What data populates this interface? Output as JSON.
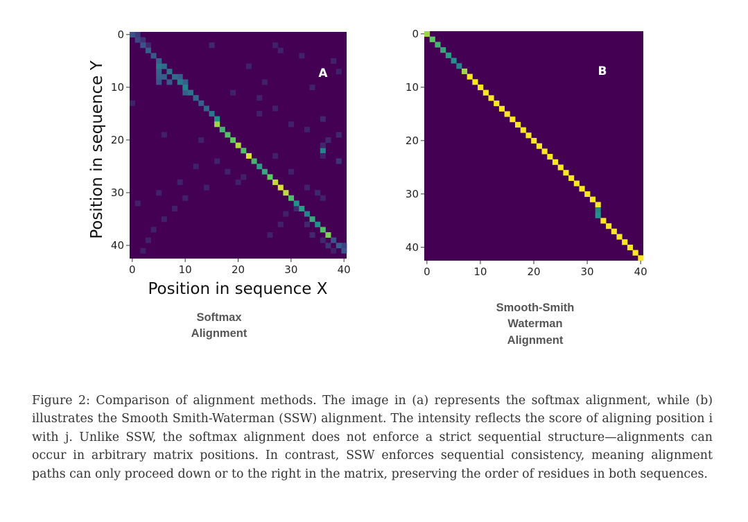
{
  "figure": {
    "caption": "Figure 2: Comparison of alignment methods. The image in (a) represents the softmax alignment, while (b) illustrates the Smooth Smith-Waterman (SSW) alignment. The intensity reflects the score of aligning position i with j. Unlike SSW, the softmax alignment does not enforce a strict sequential structure—alignments can occur in arbitrary matrix positions. In contrast, SSW enforces sequential consistency, meaning alignment paths can only proceed down or to the right in the matrix, preserving the order of residues in both sequences."
  },
  "chart_data": [
    {
      "type": "heatmap",
      "panel_label": "A",
      "subcaption": [
        "Softmax",
        "Alignment"
      ],
      "xlabel": "Position in sequence X",
      "ylabel": "Position in sequence Y",
      "x_ticks": [
        "0",
        "10",
        "20",
        "30",
        "40"
      ],
      "y_ticks": [
        "0",
        "10",
        "20",
        "30",
        "40"
      ],
      "xlim": [
        0,
        40
      ],
      "ylim": [
        0,
        42
      ],
      "rows": 43,
      "cols": 41,
      "colormap": "viridis",
      "background_value": 0.0,
      "diagonal": [
        [
          0,
          0,
          0.25
        ],
        [
          1,
          1,
          0.22
        ],
        [
          2,
          2,
          0.25
        ],
        [
          3,
          3,
          0.3
        ],
        [
          4,
          4,
          0.28
        ],
        [
          5,
          5,
          0.3
        ],
        [
          6,
          6,
          0.35
        ],
        [
          7,
          7,
          0.38
        ],
        [
          8,
          8,
          0.35
        ],
        [
          9,
          9,
          0.4
        ],
        [
          10,
          10,
          0.45
        ],
        [
          11,
          11,
          0.38
        ],
        [
          12,
          12,
          0.33
        ],
        [
          13,
          13,
          0.3
        ],
        [
          14,
          14,
          0.33
        ],
        [
          15,
          15,
          0.4
        ],
        [
          16,
          16,
          0.5
        ],
        [
          17,
          16,
          0.85
        ],
        [
          18,
          17,
          0.65
        ],
        [
          19,
          18,
          0.7
        ],
        [
          20,
          19,
          0.75
        ],
        [
          21,
          20,
          0.88
        ],
        [
          22,
          21,
          0.7
        ],
        [
          23,
          22,
          0.95
        ],
        [
          24,
          23,
          0.65
        ],
        [
          25,
          24,
          0.55
        ],
        [
          26,
          25,
          0.6
        ],
        [
          27,
          26,
          0.75
        ],
        [
          28,
          27,
          0.9
        ],
        [
          29,
          28,
          0.95
        ],
        [
          30,
          29,
          0.9
        ],
        [
          31,
          30,
          0.7
        ],
        [
          32,
          31,
          0.5
        ],
        [
          33,
          32,
          0.55
        ],
        [
          34,
          33,
          0.45
        ],
        [
          35,
          34,
          0.6
        ],
        [
          36,
          35,
          0.5
        ],
        [
          37,
          36,
          0.7
        ],
        [
          38,
          37,
          0.8
        ],
        [
          39,
          38,
          0.25
        ],
        [
          40,
          39,
          0.3
        ],
        [
          41,
          40,
          0.25
        ]
      ],
      "off_diagonal": [
        [
          0,
          1,
          0.18
        ],
        [
          1,
          2,
          0.15
        ],
        [
          2,
          3,
          0.12
        ],
        [
          5,
          5,
          0.35
        ],
        [
          6,
          5,
          0.4
        ],
        [
          7,
          5,
          0.32
        ],
        [
          8,
          5,
          0.3
        ],
        [
          9,
          5,
          0.25
        ],
        [
          2,
          15,
          0.12
        ],
        [
          4,
          4,
          0.15
        ],
        [
          8,
          9,
          0.3
        ],
        [
          9,
          10,
          0.3
        ],
        [
          11,
          10,
          0.3
        ],
        [
          12,
          12,
          0.25
        ],
        [
          6,
          22,
          0.1
        ],
        [
          3,
          28,
          0.1
        ],
        [
          2,
          27,
          0.1
        ],
        [
          22,
          36,
          0.45
        ],
        [
          21,
          36,
          0.12
        ],
        [
          23,
          36,
          0.1
        ],
        [
          8,
          6,
          0.3
        ],
        [
          9,
          7,
          0.28
        ],
        [
          4,
          32,
          0.1
        ],
        [
          9,
          25,
          0.1
        ],
        [
          13,
          0,
          0.1
        ],
        [
          16,
          36,
          0.12
        ],
        [
          19,
          39,
          0.12
        ],
        [
          24,
          39,
          0.15
        ],
        [
          30,
          35,
          0.12
        ],
        [
          33,
          31,
          0.12
        ],
        [
          34,
          29,
          0.1
        ],
        [
          36,
          28,
          0.1
        ],
        [
          38,
          26,
          0.1
        ],
        [
          40,
          37,
          0.15
        ],
        [
          41,
          38,
          0.1
        ],
        [
          40,
          40,
          0.2
        ],
        [
          27,
          21,
          0.1
        ],
        [
          26,
          18,
          0.1
        ],
        [
          29,
          14,
          0.1
        ],
        [
          31,
          10,
          0.1
        ],
        [
          33,
          8,
          0.1
        ],
        [
          35,
          6,
          0.1
        ],
        [
          37,
          4,
          0.1
        ],
        [
          39,
          3,
          0.1
        ],
        [
          41,
          2,
          0.1
        ],
        [
          12,
          24,
          0.1
        ],
        [
          14,
          27,
          0.1
        ],
        [
          17,
          30,
          0.1
        ],
        [
          18,
          33,
          0.1
        ],
        [
          20,
          37,
          0.12
        ],
        [
          25,
          12,
          0.1
        ],
        [
          28,
          9,
          0.1
        ],
        [
          30,
          5,
          0.1
        ],
        [
          32,
          1,
          0.1
        ],
        [
          11,
          19,
          0.1
        ],
        [
          10,
          34,
          0.1
        ],
        [
          5,
          38,
          0.1
        ],
        [
          7,
          39,
          0.1
        ],
        [
          15,
          24,
          0.1
        ],
        [
          23,
          27,
          0.1
        ],
        [
          26,
          30,
          0.1
        ],
        [
          29,
          33,
          0.1
        ],
        [
          31,
          36,
          0.1
        ],
        [
          36,
          33,
          0.12
        ],
        [
          38,
          34,
          0.12
        ],
        [
          39,
          36,
          0.12
        ],
        [
          20,
          13,
          0.1
        ],
        [
          24,
          16,
          0.1
        ],
        [
          28,
          20,
          0.1
        ],
        [
          19,
          6,
          0.1
        ]
      ]
    },
    {
      "type": "heatmap",
      "panel_label": "B",
      "subcaption": [
        "Smooth-Smith",
        "Waterman",
        "Alignment"
      ],
      "xlabel": "",
      "ylabel": "",
      "x_ticks": [
        "0",
        "10",
        "20",
        "30",
        "40"
      ],
      "y_ticks": [
        "0",
        "10",
        "20",
        "30",
        "40"
      ],
      "xlim": [
        0,
        40
      ],
      "ylim": [
        0,
        42
      ],
      "rows": 43,
      "cols": 41,
      "colormap": "viridis",
      "background_value": 0.0,
      "diagonal": [
        [
          0,
          0,
          0.85
        ],
        [
          1,
          1,
          0.75
        ],
        [
          2,
          2,
          0.65
        ],
        [
          3,
          3,
          0.6
        ],
        [
          4,
          4,
          0.55
        ],
        [
          5,
          5,
          0.5
        ],
        [
          6,
          6,
          0.45
        ],
        [
          7,
          7,
          0.85
        ],
        [
          8,
          8,
          1.0
        ],
        [
          9,
          9,
          1.0
        ],
        [
          10,
          10,
          1.0
        ],
        [
          11,
          11,
          1.0
        ],
        [
          12,
          12,
          1.0
        ],
        [
          13,
          13,
          1.0
        ],
        [
          14,
          14,
          1.0
        ],
        [
          15,
          15,
          1.0
        ],
        [
          16,
          16,
          1.0
        ],
        [
          17,
          17,
          1.0
        ],
        [
          18,
          18,
          1.0
        ],
        [
          19,
          19,
          1.0
        ],
        [
          20,
          20,
          1.0
        ],
        [
          21,
          21,
          1.0
        ],
        [
          22,
          22,
          1.0
        ],
        [
          23,
          23,
          1.0
        ],
        [
          24,
          24,
          1.0
        ],
        [
          25,
          25,
          1.0
        ],
        [
          26,
          26,
          1.0
        ],
        [
          27,
          27,
          1.0
        ],
        [
          28,
          28,
          1.0
        ],
        [
          29,
          29,
          1.0
        ],
        [
          30,
          30,
          1.0
        ],
        [
          31,
          31,
          1.0
        ],
        [
          32,
          32,
          1.0
        ],
        [
          33,
          32,
          0.45
        ],
        [
          34,
          32,
          0.5
        ],
        [
          35,
          33,
          1.0
        ],
        [
          36,
          34,
          1.0
        ],
        [
          37,
          35,
          1.0
        ],
        [
          38,
          36,
          1.0
        ],
        [
          39,
          37,
          1.0
        ],
        [
          40,
          38,
          1.0
        ],
        [
          41,
          39,
          1.0
        ],
        [
          42,
          40,
          1.0
        ]
      ],
      "off_diagonal": []
    }
  ]
}
